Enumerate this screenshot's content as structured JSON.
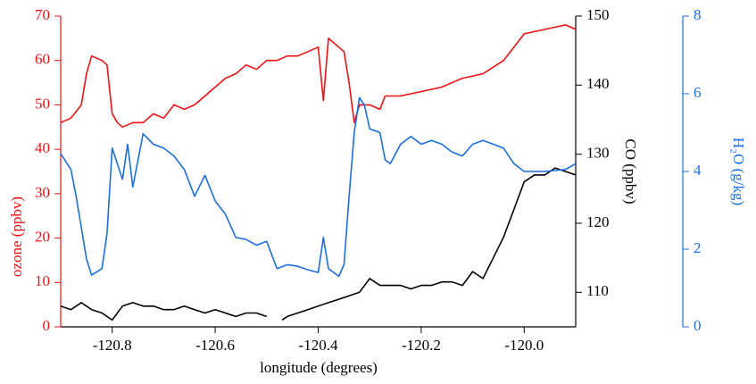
{
  "chart_data": {
    "type": "line",
    "x_label": "longitude (degrees)",
    "y_label": "ozone (ppbv)",
    "y2_label": "CO (ppbv)",
    "y3_label": "H₂O (g/kg)",
    "xlim": [
      -120.9,
      -119.9
    ],
    "xticks": [
      -120.8,
      -120.6,
      -120.4,
      -120.2,
      {
        "value": -120.0,
        "label": "-120.0"
      }
    ],
    "ylim": [
      0,
      70
    ],
    "yticks": [
      0,
      10,
      20,
      30,
      40,
      50,
      60,
      70
    ],
    "ycolor": "#ee1111",
    "y2lim": [
      105,
      150
    ],
    "y2ticks": [
      110,
      120,
      130,
      140,
      150
    ],
    "y2color": "#000000",
    "y3lim": [
      0,
      8
    ],
    "y3ticks": [
      0,
      2,
      4,
      6,
      8
    ],
    "y3color": "#1a6fe0",
    "series": [
      {
        "name": "ozone",
        "color": "#ee1111",
        "axis": "y",
        "x": [
          -120.9,
          -120.88,
          -120.86,
          -120.85,
          -120.84,
          -120.82,
          -120.81,
          -120.8,
          -120.79,
          -120.78,
          -120.76,
          -120.74,
          -120.72,
          -120.7,
          -120.68,
          -120.66,
          -120.64,
          -120.62,
          -120.6,
          -120.58,
          -120.56,
          -120.54,
          -120.52,
          -120.5,
          -120.48,
          -120.46,
          -120.44,
          -120.42,
          -120.4,
          -120.39,
          -120.38,
          -120.36,
          -120.35,
          -120.34,
          -120.33,
          -120.32,
          -120.3,
          -120.28,
          -120.27,
          -120.24,
          -120.2,
          -120.16,
          -120.12,
          -120.08,
          -120.04,
          -120.02,
          -120.0,
          -119.96,
          -119.92,
          -119.9
        ],
        "values": [
          46,
          47,
          50,
          57,
          61,
          60,
          59,
          48,
          46,
          45,
          46,
          46,
          48,
          47,
          50,
          49,
          50,
          52,
          54,
          56,
          57,
          59,
          58,
          60,
          60,
          61,
          61,
          62,
          63,
          51,
          65,
          63,
          62,
          55,
          46,
          50,
          50,
          49,
          52,
          52,
          53,
          54,
          56,
          57,
          60,
          63,
          66,
          67,
          68,
          67
        ]
      },
      {
        "name": "CO",
        "color": "#000000",
        "axis": "y2",
        "x": [
          -120.9,
          -120.88,
          -120.86,
          -120.84,
          -120.82,
          -120.8,
          -120.78,
          -120.76,
          -120.74,
          -120.72,
          -120.7,
          -120.68,
          -120.66,
          -120.64,
          -120.62,
          -120.6,
          -120.58,
          -120.56,
          -120.54,
          -120.52,
          -120.5,
          -120.49,
          -120.48,
          -120.47,
          -120.46,
          -120.44,
          -120.42,
          -120.4,
          -120.38,
          -120.36,
          -120.34,
          -120.32,
          -120.3,
          -120.28,
          -120.26,
          -120.24,
          -120.22,
          -120.2,
          -120.18,
          -120.16,
          -120.14,
          -120.12,
          -120.1,
          -120.08,
          -120.06,
          -120.04,
          -120.02,
          -120.0,
          -119.98,
          -119.96,
          -119.94,
          -119.92,
          -119.9
        ],
        "values": [
          108,
          107.5,
          108.5,
          107.5,
          107,
          106,
          108,
          108.5,
          108,
          108,
          107.5,
          107.5,
          108,
          107.5,
          107,
          107.5,
          107,
          106.5,
          107,
          107,
          106.5,
          null,
          null,
          106,
          106.5,
          107,
          107.5,
          108,
          108.5,
          109,
          109.5,
          110,
          112,
          111,
          111,
          111,
          110.5,
          111,
          111,
          111.5,
          111.5,
          111,
          113,
          112,
          115,
          118,
          122,
          126,
          127,
          127,
          128,
          127.5,
          127
        ]
      },
      {
        "name": "H₂O",
        "color": "#1a6fe0",
        "axis": "y3",
        "x": [
          -120.9,
          -120.88,
          -120.87,
          -120.85,
          -120.84,
          -120.82,
          -120.81,
          -120.8,
          -120.78,
          -120.77,
          -120.76,
          -120.74,
          -120.72,
          -120.7,
          -120.68,
          -120.66,
          -120.64,
          -120.62,
          -120.6,
          -120.58,
          -120.56,
          -120.54,
          -120.52,
          -120.5,
          -120.48,
          -120.46,
          -120.44,
          -120.42,
          -120.4,
          -120.39,
          -120.38,
          -120.36,
          -120.35,
          -120.34,
          -120.33,
          -120.32,
          -120.31,
          -120.3,
          -120.28,
          -120.27,
          -120.26,
          -120.24,
          -120.22,
          -120.2,
          -120.18,
          -120.16,
          -120.14,
          -120.12,
          -120.1,
          -120.08,
          -120.06,
          -120.04,
          -120.02,
          -120.0,
          -119.96,
          -119.92,
          -119.9
        ],
        "values": [
          4.46,
          4.05,
          3.36,
          1.75,
          1.33,
          1.5,
          2.4,
          4.6,
          3.8,
          4.7,
          3.6,
          4.97,
          4.7,
          4.6,
          4.4,
          4.05,
          3.36,
          3.9,
          3.24,
          2.9,
          2.3,
          2.25,
          2.1,
          2.2,
          1.5,
          1.6,
          1.56,
          1.47,
          1.4,
          2.3,
          1.5,
          1.3,
          1.6,
          3.35,
          5.0,
          5.9,
          5.7,
          5.1,
          5.0,
          4.3,
          4.2,
          4.7,
          4.9,
          4.7,
          4.8,
          4.7,
          4.5,
          4.4,
          4.7,
          4.8,
          4.7,
          4.6,
          4.2,
          4.0,
          4.0,
          4.05,
          4.2
        ]
      }
    ]
  }
}
